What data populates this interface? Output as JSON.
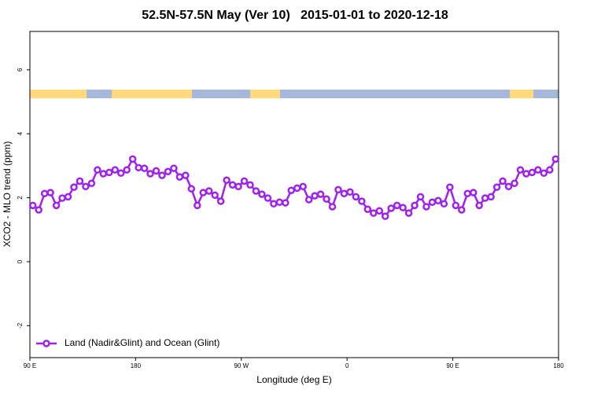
{
  "chart_data": {
    "type": "line",
    "title": "52.5N-57.5N May (Ver 10)   2015-01-01 to 2020-12-18",
    "x_label": "Longitude (deg E)",
    "y_label": "XCO2 - MLO trend (ppm)",
    "xlim": [
      90,
      540
    ],
    "ylim": [
      -3,
      7.2
    ],
    "xticks": [
      {
        "value": 90,
        "label": "90 E"
      },
      180,
      {
        "value": 270,
        "label": "90 W"
      },
      {
        "value": 360,
        "label": "0"
      },
      {
        "value": 450,
        "label": "90 E"
      },
      {
        "value": 540,
        "label": "180"
      }
    ],
    "yticks": [
      -2,
      0,
      2,
      4,
      6
    ],
    "legend_position": "bottom-left",
    "x": [
      92.5,
      97.5,
      102.5,
      107.5,
      112.5,
      117.5,
      122.5,
      127.5,
      132.5,
      137.5,
      142.5,
      147.5,
      152.5,
      157.5,
      162.5,
      167.5,
      172.5,
      177.5,
      182.5,
      187.5,
      192.5,
      197.5,
      202.5,
      207.5,
      212.5,
      217.5,
      222.5,
      227.5,
      232.5,
      237.5,
      242.5,
      247.5,
      252.5,
      257.5,
      262.5,
      267.5,
      272.5,
      277.5,
      282.5,
      287.5,
      292.5,
      297.5,
      302.5,
      307.5,
      312.5,
      317.5,
      322.5,
      327.5,
      332.5,
      337.5,
      342.5,
      347.5,
      352.5,
      357.5,
      362.5,
      367.5,
      372.5,
      377.5,
      382.5,
      387.5,
      392.5,
      397.5,
      402.5,
      407.5,
      412.5,
      417.5,
      422.5,
      427.5,
      432.5,
      437.5,
      442.5,
      447.5,
      452.5,
      457.5,
      462.5,
      467.5,
      472.5,
      477.5,
      482.5,
      487.5,
      492.5,
      497.5,
      502.5,
      507.5,
      512.5,
      517.5,
      522.5,
      527.5,
      532.5,
      537.5
    ],
    "series": [
      {
        "name": "Land (Nadir&Glint) and Ocean (Glint)",
        "color": "#a020f0",
        "values": [
          1.76,
          1.62,
          2.13,
          2.16,
          1.76,
          1.99,
          2.03,
          2.33,
          2.52,
          2.35,
          2.45,
          2.87,
          2.75,
          2.79,
          2.87,
          2.77,
          2.87,
          3.21,
          2.94,
          2.92,
          2.75,
          2.84,
          2.7,
          2.82,
          2.92,
          2.65,
          2.7,
          2.28,
          1.76,
          2.16,
          2.21,
          2.08,
          1.89,
          2.55,
          2.4,
          2.35,
          2.52,
          2.4,
          2.21,
          2.11,
          1.99,
          1.81,
          1.86,
          1.84,
          2.23,
          2.3,
          2.35,
          1.94,
          2.06,
          2.11,
          1.96,
          1.72,
          2.25,
          2.13,
          2.18,
          2.03,
          1.89,
          1.64,
          1.52,
          1.59,
          1.42,
          1.67,
          1.76,
          1.69,
          1.52,
          1.76,
          2.03,
          1.72,
          1.86,
          1.91,
          1.81,
          2.33,
          1.76,
          1.62,
          2.13,
          2.16,
          1.76,
          1.99,
          2.03,
          2.33,
          2.52,
          2.35,
          2.45,
          2.87,
          2.75,
          2.79,
          2.87,
          2.77,
          2.87,
          3.21
        ]
      }
    ]
  }
}
